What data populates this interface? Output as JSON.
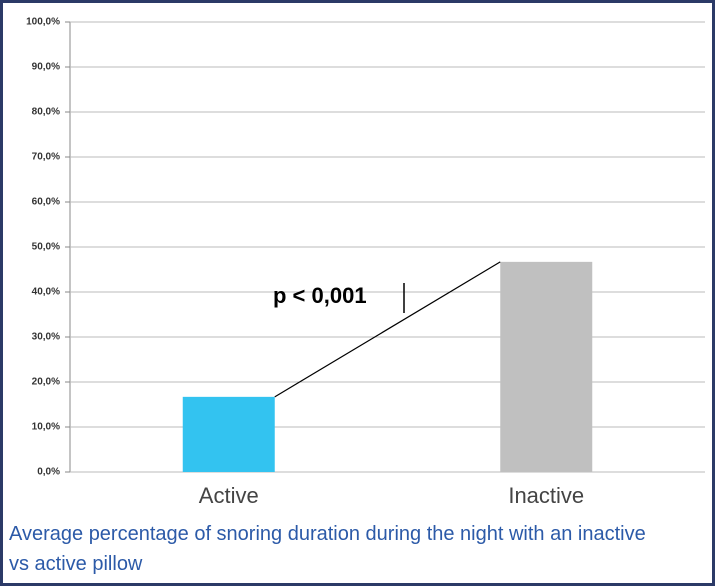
{
  "chart_data": {
    "type": "bar",
    "categories": [
      "Active",
      "Inactive"
    ],
    "values": [
      16.7,
      46.7
    ],
    "colors": [
      "#33c3f0",
      "#c0c0c0"
    ],
    "ylim": [
      0,
      100
    ],
    "yticks": [
      {
        "value": 0,
        "label": "0,0%"
      },
      {
        "value": 10,
        "label": "10,0%"
      },
      {
        "value": 20,
        "label": "20,0%"
      },
      {
        "value": 30,
        "label": "30,0%"
      },
      {
        "value": 40,
        "label": "40,0%"
      },
      {
        "value": 50,
        "label": "50,0%"
      },
      {
        "value": 60,
        "label": "60,0%"
      },
      {
        "value": 70,
        "label": "70,0%"
      },
      {
        "value": 80,
        "label": "80,0%"
      },
      {
        "value": 90,
        "label": "90,0%"
      },
      {
        "value": 100,
        "label": "100,0%"
      }
    ],
    "grid": true,
    "annotation": "p < 0,001",
    "caption": "Average percentage of snoring duration during the night with an inactive vs active pillow"
  }
}
